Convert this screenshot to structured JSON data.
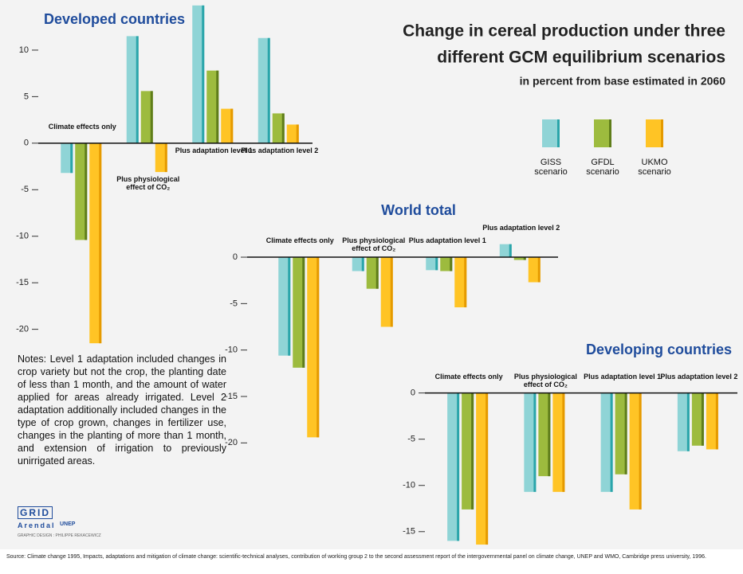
{
  "title_lines": [
    "Change in cereal production under three",
    "different GCM equilibrium scenarios"
  ],
  "subtitle": "in percent from base estimated in 2060",
  "notes": "Notes: Level 1 adaptation included changes in crop variety but not the crop, the planting date of less than 1 month, and the amount of water applied for areas already irrigated. Level 2 adaptation additionally included changes in the type of crop grown, changes in fertilizer use, changes in the planting of more than 1 month, and extension of irrigation to previously unirrigated areas.",
  "logos": {
    "grid": "GRID",
    "arendal": "Arendal",
    "unep": "UNEP",
    "credit": "GRAPHIC DESIGN : PHILIPPE REKACEWICZ"
  },
  "source": "Source: Climate change 1995, Impacts, adaptations and mitigation of climate change: scientific-technical analyses, contribution of working group 2 to the second assessment report of the intergovernmental panel on climate change, UNEP and WMO, Cambridge press university, 1996.",
  "chart_data": [
    {
      "type": "bar",
      "title": "Developed countries",
      "categories": [
        "Climate effects only",
        "Plus physiological effect of CO₂",
        "Plus adaptation level 1",
        "Plus adaptation level 2"
      ],
      "series": [
        {
          "name": "GISS scenario",
          "color": "#8fd4d6",
          "values": [
            -3.2,
            11.5,
            14.8,
            11.3
          ]
        },
        {
          "name": "GFDL scenario",
          "color": "#9dbb3e",
          "values": [
            -10.4,
            5.6,
            7.8,
            3.2
          ]
        },
        {
          "name": "UKMO scenario",
          "color": "#ffc425",
          "values": [
            -21.5,
            -3.1,
            3.7,
            2.0
          ]
        }
      ],
      "ylim": [
        -22,
        15
      ],
      "yticks": [
        10,
        5,
        0,
        -5,
        -10,
        -15,
        -20
      ]
    },
    {
      "type": "bar",
      "title": "World total",
      "categories": [
        "Climate effects only",
        "Plus physiological effect of CO₂",
        "Plus adaptation level 1",
        "Plus adaptation level 2"
      ],
      "series": [
        {
          "name": "GISS scenario",
          "color": "#8fd4d6",
          "values": [
            -10.6,
            -1.5,
            -1.4,
            1.4
          ]
        },
        {
          "name": "GFDL scenario",
          "color": "#9dbb3e",
          "values": [
            -11.9,
            -3.4,
            -1.5,
            -0.3
          ]
        },
        {
          "name": "UKMO scenario",
          "color": "#ffc425",
          "values": [
            -19.4,
            -7.5,
            -5.4,
            -2.7
          ]
        }
      ],
      "ylim": [
        -21,
        2
      ],
      "yticks": [
        0,
        -5,
        -10,
        -15,
        -20
      ]
    },
    {
      "type": "bar",
      "title": "Developing countries",
      "categories": [
        "Climate effects only",
        "Plus physiological effect of CO₂",
        "Plus adaptation level 1",
        "Plus adaptation level 2"
      ],
      "series": [
        {
          "name": "GISS scenario",
          "color": "#8fd4d6",
          "values": [
            -16.0,
            -10.7,
            -10.7,
            -6.3
          ]
        },
        {
          "name": "GFDL scenario",
          "color": "#9dbb3e",
          "values": [
            -12.6,
            -9.0,
            -8.8,
            -5.7
          ]
        },
        {
          "name": "UKMO scenario",
          "color": "#ffc425",
          "values": [
            -16.4,
            -10.7,
            -12.6,
            -6.1
          ]
        }
      ],
      "ylim": [
        -17,
        1
      ],
      "yticks": [
        0,
        -5,
        -10,
        -15
      ]
    }
  ]
}
